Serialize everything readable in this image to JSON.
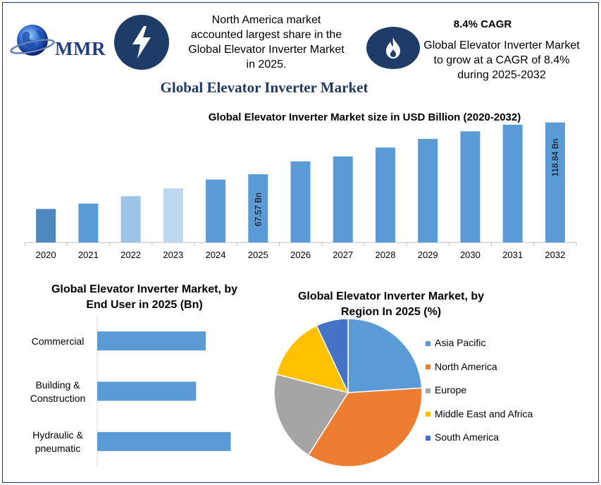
{
  "brand": {
    "logo_text": "MMR"
  },
  "header": {
    "icon1": "lightning-bolt-icon",
    "info1": [
      "North America market",
      "accounted largest share in the",
      "Global Elevator Inverter Market",
      "in 2025."
    ],
    "icon2": "flame-icon",
    "cagr_title": "8.4% CAGR",
    "info2": [
      "Global Elevator Inverter Market",
      "to grow at a CAGR of 8.4%",
      "during 2025-2032"
    ]
  },
  "main_title": "Global Elevator Inverter Market",
  "chart_data": [
    {
      "type": "bar",
      "title": "Global Elevator Inverter Market size in USD Billion (2020-2032)",
      "categories": [
        "2020",
        "2021",
        "2022",
        "2023",
        "2024",
        "2025",
        "2026",
        "2027",
        "2028",
        "2029",
        "2030",
        "2031",
        "2032"
      ],
      "values": [
        33.2,
        38.5,
        45.8,
        53.6,
        62.3,
        67.57,
        80.3,
        85.2,
        94.0,
        102.5,
        110.0,
        116.6,
        118.84
      ],
      "data_labels": {
        "2025": "67.57 Bn",
        "2032": "118.84 Bn"
      },
      "ylim": [
        0,
        120
      ],
      "colors": [
        "#4f88c0",
        "#5b9bd5",
        "#9dc3e6",
        "#bdd7ee",
        "#5b9bd5",
        "#5b9bd5",
        "#5b9bd5",
        "#5b9bd5",
        "#5b9bd5",
        "#5b9bd5",
        "#5b9bd5",
        "#5b9bd5",
        "#5b9bd5"
      ],
      "grid": false
    },
    {
      "type": "bar",
      "orientation": "horizontal",
      "title": [
        "Global Elevator Inverter Market, by",
        "End User in 2025 (Bn)"
      ],
      "categories": [
        [
          "Commercial"
        ],
        [
          "Building &",
          "Construction"
        ],
        [
          "Hydraulic &",
          "pneumatic"
        ]
      ],
      "values": [
        33.5,
        30.5,
        41.2
      ],
      "xlim": [
        0,
        100
      ],
      "color": "#5b9bd5"
    },
    {
      "type": "pie",
      "title": [
        "Global Elevator Inverter Market, by",
        "Region In 2025 (%)"
      ],
      "labels": [
        "Asia Pacific",
        "North America",
        "Europe",
        "Middle East and Africa",
        "South America"
      ],
      "values": [
        24,
        35,
        20,
        14,
        7
      ],
      "colors": [
        "#5b9bd5",
        "#ed7d31",
        "#a5a5a5",
        "#ffc000",
        "#4472c4"
      ],
      "legend": "right"
    }
  ]
}
